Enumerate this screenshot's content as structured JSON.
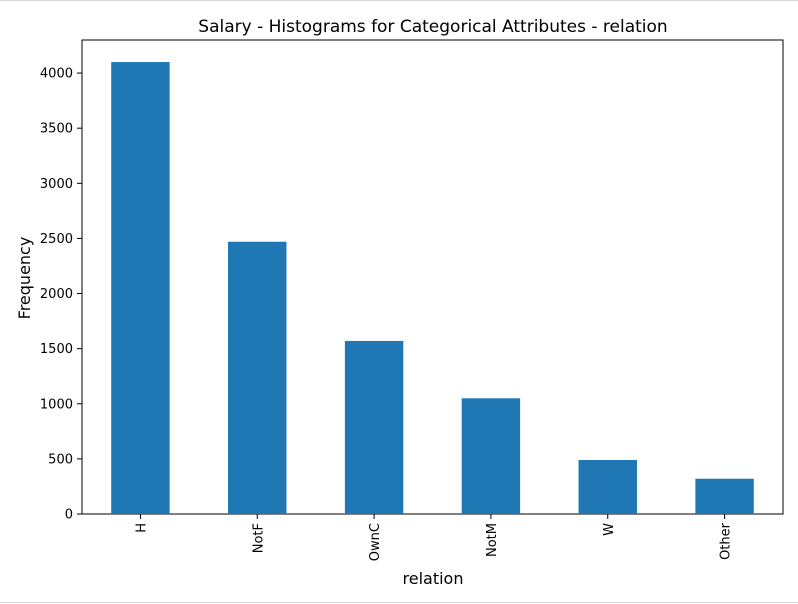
{
  "chart_data": {
    "type": "bar",
    "title": "Salary - Histograms for Categorical Attributes - relation",
    "xlabel": "relation",
    "ylabel": "Frequency",
    "categories": [
      "H",
      "NotF",
      "OwnC",
      "NotM",
      "W",
      "Other"
    ],
    "values": [
      4100,
      2470,
      1570,
      1050,
      490,
      320
    ],
    "ylim": [
      0,
      4300
    ],
    "yticks": [
      0,
      500,
      1000,
      1500,
      2000,
      2500,
      3000,
      3500,
      4000
    ],
    "ytick_labels": [
      "0",
      "500",
      "1000",
      "1500",
      "2000",
      "2500",
      "3000",
      "3500",
      "4000"
    ],
    "x_tick_rotation": "vertical",
    "grid": false,
    "legend": "none",
    "bar_color": "#1f77b4"
  }
}
